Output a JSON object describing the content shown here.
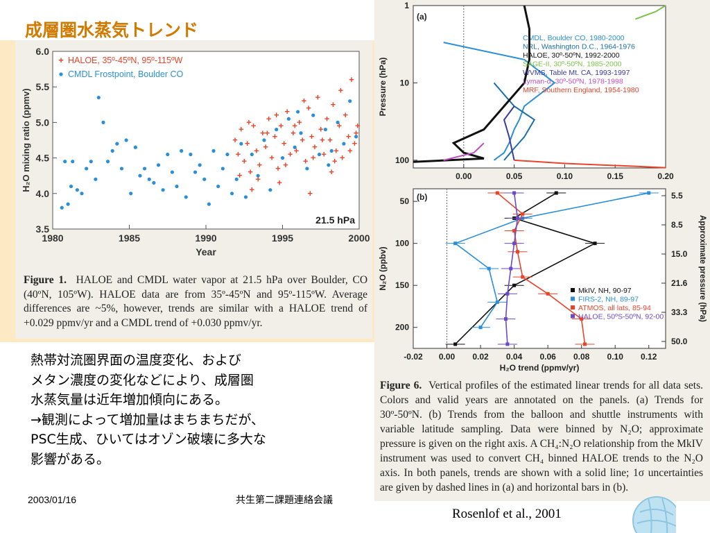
{
  "slide": {
    "title": "成層圏水蒸気トレンド",
    "body_lines": [
      "熱帯対流圏界面の温度変化、および",
      "メタン濃度の変化などにより、成層圏",
      "水蒸気量は近年増加傾向にある。",
      "→観測によって増加量はまちまちだが、",
      "PSC生成、ひいてはオゾン破壊に多大な",
      "影響がある。"
    ],
    "footer_date": "2003/01/16",
    "footer_org": "共生第二課題連絡会議",
    "citation": "Rosenlof et al., 2001"
  },
  "figure1": {
    "caption_bold": "Figure 1.",
    "caption_text": "HALOE and CMDL water vapor at 21.5 hPa over Boulder, CO (40ºN, 105ºW). HALOE data are from 35º-45ºN and 95º-115ºW. Average differences are ~5%, however, trends are similar with a HALOE trend of +0.029 ppmv/yr and a CMDL trend of +0.030 ppmv/yr."
  },
  "figure6": {
    "caption_bold": "Figure 6.",
    "caption_text": "Vertical profiles of the estimated linear trends for all data sets. Colors and valid years are annotated on the panels. (a) Trends for 30º-50ºN. (b) Trends from the balloon and shuttle instruments with variable latitude sampling. Data were binned by N₂O; approximate pressure is given on the right axis. A CH₄:N₂O relationship from the MkIV instrument was used to convert CH₄ binned HALOE trends to the N₂O axis. In both panels, trends are shown with a solid line; 1σ uncertainties are given by dashed lines in (a) and horizontal bars in (b)."
  },
  "chart_data": [
    {
      "type": "scatter",
      "xlabel": "Year",
      "ylabel": "H₂O mixing ratio (ppmv)",
      "xlim": [
        1980,
        2000
      ],
      "ylim": [
        3.5,
        6.0
      ],
      "xticks": [
        "1980",
        "1985",
        "1990",
        "1995",
        "2000"
      ],
      "yticks": [
        "3.5",
        "4.0",
        "4.5",
        "5.0",
        "5.5",
        "6.0"
      ],
      "annotation": "21.5 hPa",
      "legend_position": "top-left",
      "colors": {
        "haloe": "#e8442a",
        "cmdl": "#2a8fd8"
      },
      "series": [
        {
          "name": "HALOE, 35º-45ºN, 95º-115ºW",
          "marker": "plus",
          "x": [
            1991.9,
            1992.1,
            1992.3,
            1992.5,
            1992.7,
            1992.9,
            1993.1,
            1993.3,
            1993.5,
            1993.7,
            1993.9,
            1994.1,
            1994.3,
            1994.5,
            1994.7,
            1994.9,
            1995.1,
            1995.3,
            1995.5,
            1995.7,
            1995.9,
            1996.1,
            1996.3,
            1996.5,
            1996.7,
            1996.9,
            1997.1,
            1997.3,
            1997.5,
            1997.7,
            1997.9,
            1998.1,
            1998.3,
            1998.5,
            1998.7,
            1998.9,
            1999.1,
            1999.3,
            1999.5,
            1999.7,
            1999.9,
            1992.2,
            1992.8,
            1993.4,
            1994.0,
            1994.6,
            1995.2,
            1995.8,
            1996.4,
            1997.0,
            1997.6,
            1998.2,
            1998.8,
            1999.4,
            1999.8,
            1993.0,
            1994.8,
            1996.8,
            1998.4
          ],
          "y": [
            4.75,
            4.55,
            4.9,
            4.45,
            4.7,
            4.3,
            4.95,
            4.6,
            4.4,
            4.85,
            4.65,
            5.05,
            4.5,
            4.8,
            4.35,
            4.95,
            4.7,
            5.15,
            4.55,
            4.85,
            4.6,
            5.0,
            4.75,
            4.45,
            5.2,
            4.8,
            4.65,
            5.35,
            4.9,
            4.55,
            5.05,
            4.75,
            5.25,
            4.6,
            4.95,
            4.5,
            5.1,
            4.8,
            5.6,
            4.7,
            4.95,
            4.25,
            5.0,
            4.2,
            4.85,
            5.1,
            4.4,
            4.95,
            5.3,
            4.5,
            4.75,
            4.3,
            5.45,
            4.6,
            4.85,
            4.05,
            4.15,
            4.0,
            4.45
          ]
        },
        {
          "name": "CMDL Frostpoint, Boulder CO",
          "marker": "dot",
          "x": [
            1980.6,
            1980.8,
            1981.0,
            1981.2,
            1981.3,
            1981.6,
            1981.9,
            1982.2,
            1982.5,
            1982.8,
            1983.0,
            1983.3,
            1983.6,
            1983.9,
            1984.2,
            1984.5,
            1984.8,
            1985.1,
            1985.4,
            1985.7,
            1986.0,
            1986.3,
            1986.6,
            1986.9,
            1987.2,
            1987.5,
            1987.8,
            1988.1,
            1988.4,
            1988.7,
            1989.0,
            1989.3,
            1989.6,
            1989.9,
            1990.2,
            1990.5,
            1990.8,
            1991.1,
            1991.4,
            1991.7,
            1992.0,
            1992.3,
            1992.6,
            1993.0,
            1993.4,
            1993.8,
            1994.2,
            1994.6,
            1995.0,
            1995.4,
            1995.8,
            1996.2,
            1996.6,
            1997.0,
            1997.4,
            1997.8,
            1998.2,
            1998.6,
            1999.0,
            1999.4,
            1999.8,
            1996.0,
            1998.0
          ],
          "y": [
            3.8,
            4.45,
            3.85,
            4.1,
            4.45,
            4.05,
            4.0,
            4.35,
            4.45,
            4.2,
            5.35,
            5.0,
            4.45,
            4.6,
            4.7,
            4.35,
            4.75,
            4.0,
            4.65,
            4.25,
            4.35,
            4.2,
            4.15,
            4.4,
            4.05,
            4.55,
            4.3,
            4.1,
            4.6,
            3.95,
            4.55,
            4.3,
            4.4,
            4.2,
            3.85,
            4.6,
            4.1,
            4.35,
            4.55,
            4.0,
            4.2,
            4.7,
            3.95,
            4.55,
            4.25,
            4.75,
            4.05,
            4.9,
            4.5,
            5.05,
            4.65,
            4.85,
            4.35,
            5.1,
            4.55,
            4.9,
            4.6,
            5.0,
            4.7,
            5.3,
            4.8,
            5.15,
            4.4
          ]
        }
      ]
    },
    {
      "type": "line",
      "panel": "(a)",
      "xlim": [
        -0.05,
        0.2
      ],
      "xticks": [
        "0.00",
        "0.05",
        "0.10",
        "0.15",
        "0.20"
      ],
      "ylabel": "Pressure (hPa)",
      "yscale": "log",
      "ylim": [
        100,
        1
      ],
      "yticks": [
        "1",
        "10",
        "100"
      ],
      "legend_position": "top-right",
      "series": [
        {
          "name": "CMDL, Boulder CO, 1980-2000",
          "color": "#2a8fd8",
          "x": [
            0.03,
            0.04,
            0.045,
            0.05,
            0.055,
            0.06,
            0.09,
            0.06,
            -0.02
          ],
          "y": [
            100,
            80,
            60,
            40,
            30,
            20,
            10,
            5,
            3
          ]
        },
        {
          "name": "NRL, Washington D.C., 1964-1976",
          "color": "#1a6fa8",
          "x": [
            0.04,
            0.05,
            0.06,
            0.07,
            0.05,
            0.03
          ],
          "y": [
            100,
            70,
            50,
            30,
            20,
            10
          ]
        },
        {
          "name": "HALOE, 30º-50ºN, 1992-2000",
          "color": "#111111",
          "x": [
            -0.05,
            0.02,
            0.0,
            -0.01,
            0.02,
            0.04,
            0.06,
            0.065,
            0.065,
            0.06
          ],
          "y": [
            105,
            95,
            80,
            60,
            40,
            20,
            10,
            5,
            2,
            1
          ]
        },
        {
          "name": "SAGE-II, 30º-50ºN, 1985-2000",
          "color": "#7cc24a",
          "x": [
            0.17,
            0.19,
            0.2
          ],
          "y": [
            1.5,
            1.2,
            1.0
          ]
        },
        {
          "name": "WVMS, Table Mt. CA, 1993-1997",
          "color": "#3a3aa0",
          "x": [
            0.05,
            0.045,
            0.04,
            0.05
          ],
          "y": [
            100,
            50,
            30,
            20
          ]
        },
        {
          "name": "Lyman-α, 30º-50ºN, 1978-1998",
          "color": "#c050c0",
          "x": [
            -0.02,
            0.01,
            0.02
          ],
          "y": [
            100,
            80,
            60
          ]
        },
        {
          "name": "MRF, Southern England, 1954-1980",
          "color": "#e8442a",
          "x": [
            0.05,
            0.1,
            0.17,
            0.2
          ],
          "y": [
            100,
            110,
            120,
            125
          ]
        }
      ]
    },
    {
      "type": "line",
      "panel": "(b)",
      "xlabel": "H₂O trend (ppmv/yr)",
      "xlim": [
        -0.02,
        0.13
      ],
      "xticks": [
        "-0.02",
        "0.00",
        "0.02",
        "0.04",
        "0.06",
        "0.08",
        "0.10",
        "0.12"
      ],
      "ylabel": "N₂O (ppbv)",
      "ylim": [
        225,
        35
      ],
      "yticks": [
        "50",
        "100",
        "150",
        "200"
      ],
      "right_axis_label": "Approximate pressure (hPa)",
      "right_ticks": [
        "5.5",
        "8.5",
        "15.0",
        "21.6",
        "33.3",
        "50.0"
      ],
      "legend_position": "bottom-right",
      "series": [
        {
          "name": "MkIV, NH, 90-97",
          "color": "#111111",
          "marker": "diamond",
          "x": [
            0.065,
            0.04,
            0.088,
            0.04,
            0.005
          ],
          "y": [
            40,
            70,
            100,
            150,
            220
          ]
        },
        {
          "name": "FIRS-2, NH, 89-97",
          "color": "#2a8fd8",
          "marker": "square",
          "x": [
            0.12,
            0.045,
            0.005,
            0.025,
            0.03,
            0.02
          ],
          "y": [
            40,
            70,
            100,
            130,
            170,
            200
          ]
        },
        {
          "name": "ATMOS, all lats, 85-94",
          "color": "#e8442a",
          "marker": "x",
          "x": [
            0.03,
            0.045,
            0.04,
            0.042,
            0.045,
            0.06,
            0.08,
            0.082
          ],
          "y": [
            40,
            65,
            85,
            110,
            140,
            160,
            190,
            220
          ]
        },
        {
          "name": "HALOE, 50ºS-50ºN, 92-00",
          "color": "#6a4ac8",
          "marker": "triangle",
          "x": [
            0.04,
            0.042,
            0.04,
            0.038,
            0.036,
            0.035,
            0.036
          ],
          "y": [
            40,
            70,
            100,
            130,
            160,
            190,
            220
          ]
        }
      ]
    }
  ]
}
